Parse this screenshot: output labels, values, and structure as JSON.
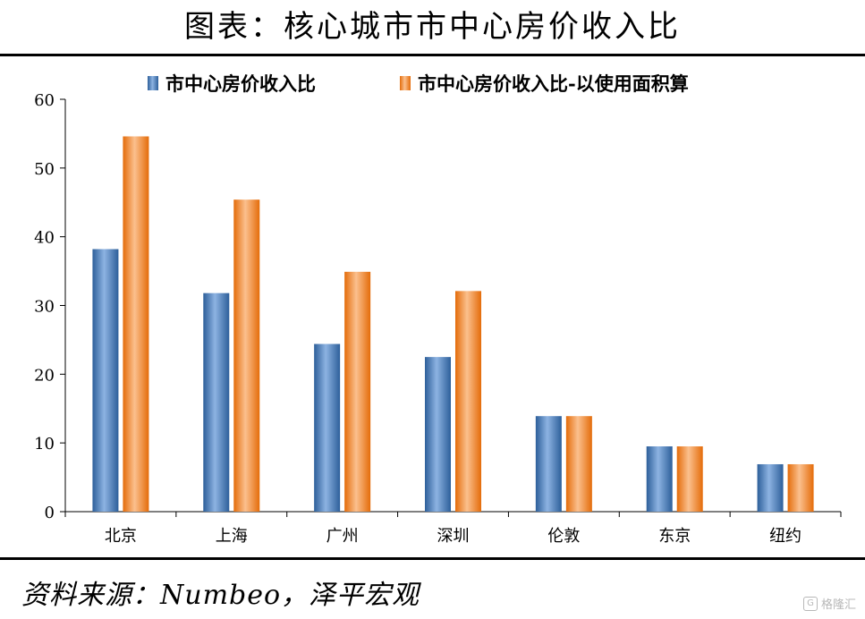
{
  "title": "图表：核心城市市中心房价收入比",
  "source": "资料来源：Numbeo，泽平宏观",
  "watermark": "格隆汇",
  "chart_data": {
    "type": "bar",
    "categories": [
      "北京",
      "上海",
      "广州",
      "深圳",
      "伦敦",
      "东京",
      "纽约"
    ],
    "series": [
      {
        "name": "市中心房价收入比",
        "values": [
          38.2,
          31.8,
          24.4,
          22.5,
          13.9,
          9.5,
          6.9
        ],
        "color": "#4f81bd"
      },
      {
        "name": "市中心房价收入比-以使用面积算",
        "values": [
          54.6,
          45.4,
          34.9,
          32.1,
          13.9,
          9.5,
          6.9
        ],
        "color": "#f08a3c"
      }
    ],
    "ylim": [
      0,
      60
    ],
    "yticks": [
      0,
      10,
      20,
      30,
      40,
      50,
      60
    ],
    "grid": false,
    "legend": "top"
  }
}
